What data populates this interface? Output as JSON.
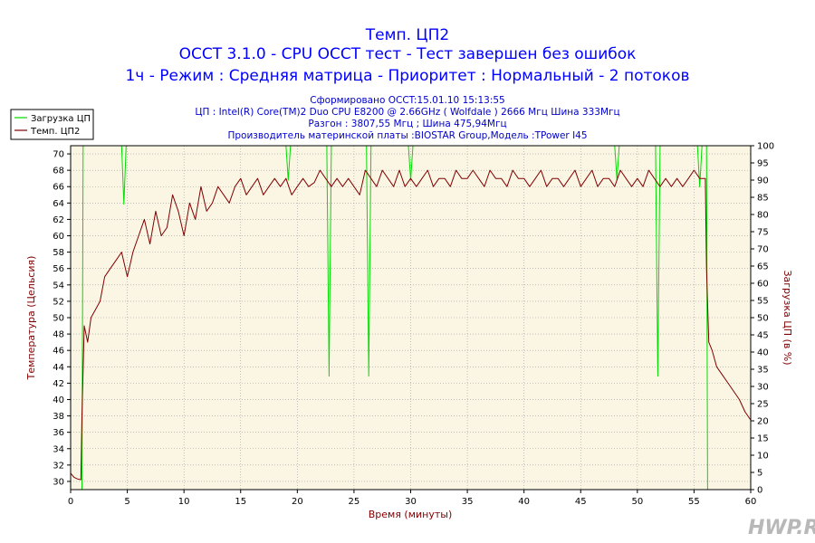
{
  "header": {
    "title_1": "Темп. ЦП2",
    "title_2": "OCCT 3.1.0 - CPU OCCT тест - Тест завершен без ошибок",
    "title_3": "1ч - Режим : Средняя матрица - Приоритет : Нормальный - 2 потоков",
    "info_1": "Сформировано OCCT:15.01.10 15:13:55",
    "info_2": "ЦП : Intel(R) Core(TM)2 Duo CPU E8200 @ 2.66GHz ( Wolfdale ) 2666 Мгц Шина 333Мгц",
    "info_3": "Разгон : 3807,55 Мгц ; Шина 475,94Мгц",
    "info_4": "Производитель материнской платы :BIOSTAR Group,Модель :TPower I45"
  },
  "watermark": "HWP.RU",
  "colors": {
    "load": "#00dd00",
    "temp": "#800000",
    "plot_bg": "#fbf6e4",
    "grid": "#9a9a9a"
  },
  "chart_data": {
    "type": "line",
    "xlabel": "Время (минуты)",
    "ylabel_left": "Температура (Цельсия)",
    "ylabel_right": "Загрузка ЦП (в %)",
    "xlim": [
      0,
      60
    ],
    "ylim_left": [
      29,
      71
    ],
    "ylim_right": [
      0,
      100
    ],
    "x_ticks": [
      0,
      5,
      10,
      15,
      20,
      25,
      30,
      35,
      40,
      45,
      50,
      55,
      60
    ],
    "y_ticks_left": [
      30,
      32,
      34,
      36,
      38,
      40,
      42,
      44,
      46,
      48,
      50,
      52,
      54,
      56,
      58,
      60,
      62,
      64,
      66,
      68,
      70
    ],
    "y_ticks_right": [
      0,
      5,
      10,
      15,
      20,
      25,
      30,
      35,
      40,
      45,
      50,
      55,
      60,
      65,
      70,
      75,
      80,
      85,
      90,
      95,
      100
    ],
    "grid": "dotted",
    "legend_position": "top-left",
    "series": [
      {
        "name": "Загрузка ЦП",
        "axis": "right",
        "x": [
          0,
          1.0,
          1.1,
          1.2,
          4.5,
          4.7,
          4.9,
          19.0,
          19.2,
          19.4,
          22.6,
          22.8,
          23.0,
          26.1,
          26.3,
          26.5,
          29.8,
          30.0,
          30.2,
          48.0,
          48.2,
          48.4,
          51.6,
          51.8,
          52.0,
          55.3,
          55.5,
          55.7,
          56.1,
          56.2,
          60
        ],
        "values": [
          0,
          0,
          100,
          100,
          100,
          83,
          100,
          100,
          90,
          100,
          100,
          33,
          100,
          100,
          33,
          100,
          100,
          90,
          100,
          100,
          90,
          100,
          100,
          33,
          100,
          100,
          88,
          100,
          100,
          0,
          0
        ]
      },
      {
        "name": "Темп. ЦП2",
        "axis": "left",
        "x": [
          0,
          0.3,
          0.6,
          0.9,
          1.0,
          1.2,
          1.5,
          1.8,
          2.2,
          2.6,
          3.0,
          3.5,
          4.0,
          4.5,
          5.0,
          5.5,
          6.0,
          6.5,
          7.0,
          7.5,
          8.0,
          8.5,
          9.0,
          9.5,
          10.0,
          10.5,
          11.0,
          11.5,
          12.0,
          12.5,
          13.0,
          13.5,
          14.0,
          14.5,
          15.0,
          15.5,
          16.0,
          16.5,
          17.0,
          17.5,
          18.0,
          18.5,
          19.0,
          19.5,
          20.0,
          20.5,
          21.0,
          21.5,
          22.0,
          22.5,
          23.0,
          23.5,
          24.0,
          24.5,
          25.0,
          25.5,
          26.0,
          26.5,
          27.0,
          27.5,
          28.0,
          28.5,
          29.0,
          29.5,
          30.0,
          30.5,
          31.0,
          31.5,
          32.0,
          32.5,
          33.0,
          33.5,
          34.0,
          34.5,
          35.0,
          35.5,
          36.0,
          36.5,
          37.0,
          37.5,
          38.0,
          38.5,
          39.0,
          39.5,
          40.0,
          40.5,
          41.0,
          41.5,
          42.0,
          42.5,
          43.0,
          43.5,
          44.0,
          44.5,
          45.0,
          45.5,
          46.0,
          46.5,
          47.0,
          47.5,
          48.0,
          48.5,
          49.0,
          49.5,
          50.0,
          50.5,
          51.0,
          51.5,
          52.0,
          52.5,
          53.0,
          53.5,
          54.0,
          54.5,
          55.0,
          55.5,
          56.0,
          56.1,
          56.3,
          56.6,
          57.0,
          57.5,
          58.0,
          58.5,
          59.0,
          59.5,
          60.0
        ],
        "values": [
          31,
          30.5,
          30.3,
          30.2,
          38,
          49,
          47,
          50,
          51,
          52,
          55,
          56,
          57,
          58,
          55,
          58,
          60,
          62,
          59,
          63,
          60,
          61,
          65,
          63,
          60,
          64,
          62,
          66,
          63,
          64,
          66,
          65,
          64,
          66,
          67,
          65,
          66,
          67,
          65,
          66,
          67,
          66,
          67,
          65,
          66,
          67,
          66,
          66.5,
          68,
          67,
          66,
          67,
          66,
          67,
          66,
          65,
          68,
          67,
          66,
          68,
          67,
          66,
          68,
          66,
          67,
          66,
          67,
          68,
          66,
          67,
          67,
          66,
          68,
          67,
          67,
          68,
          67,
          66,
          68,
          67,
          67,
          66,
          68,
          67,
          67,
          66,
          67,
          68,
          66,
          67,
          67,
          66,
          67,
          68,
          66,
          67,
          68,
          66,
          67,
          67,
          66,
          68,
          67,
          66,
          67,
          66,
          68,
          67,
          66,
          67,
          66,
          67,
          66,
          67,
          68,
          67,
          67,
          56,
          47,
          46,
          44,
          43,
          42,
          41,
          40,
          38.5,
          37.5
        ]
      }
    ]
  }
}
